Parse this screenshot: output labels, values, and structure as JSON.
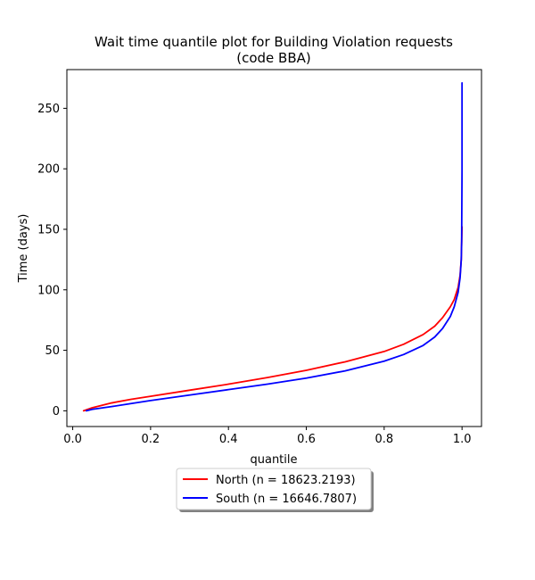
{
  "chart_data": {
    "type": "line",
    "title": "Wait time quantile plot for Building Violation  requests",
    "subtitle": "(code BBA)",
    "xlabel": "quantile",
    "ylabel": "Time (days)",
    "xlim": [
      -0.015,
      1.05
    ],
    "ylim": [
      -13,
      282
    ],
    "x_ticks": [
      0.0,
      0.2,
      0.4,
      0.6,
      0.8,
      1.0
    ],
    "x_tick_labels": [
      "0.0",
      "0.2",
      "0.4",
      "0.6",
      "0.8",
      "1.0"
    ],
    "y_ticks": [
      0,
      50,
      100,
      150,
      200,
      250
    ],
    "y_tick_labels": [
      "0",
      "50",
      "100",
      "150",
      "200",
      "250"
    ],
    "grid": false,
    "legend_position": "below-center",
    "series": [
      {
        "name": "North (n = 18623.2193)",
        "color": "#ff0000",
        "x": [
          0.028,
          0.05,
          0.1,
          0.15,
          0.2,
          0.3,
          0.4,
          0.5,
          0.6,
          0.7,
          0.8,
          0.85,
          0.9,
          0.93,
          0.95,
          0.97,
          0.98,
          0.99,
          0.995,
          0.998,
          1.0
        ],
        "y": [
          0,
          2.5,
          6.5,
          9.5,
          12,
          17,
          22,
          27.5,
          33.5,
          40.5,
          49,
          55,
          63,
          70,
          77,
          86,
          92,
          102,
          112,
          125,
          152
        ]
      },
      {
        "name": "South (n = 16646.7807)",
        "color": "#0000ff",
        "x": [
          0.035,
          0.05,
          0.1,
          0.15,
          0.2,
          0.3,
          0.4,
          0.5,
          0.6,
          0.7,
          0.8,
          0.85,
          0.9,
          0.93,
          0.95,
          0.97,
          0.98,
          0.99,
          0.995,
          0.998,
          0.999,
          1.0,
          1.0
        ],
        "y": [
          0,
          1.2,
          3.5,
          6,
          8.5,
          13,
          17.5,
          22,
          27,
          33,
          41,
          46.5,
          54,
          61,
          68,
          78,
          86,
          98,
          110,
          125,
          140,
          200,
          271
        ]
      }
    ]
  }
}
